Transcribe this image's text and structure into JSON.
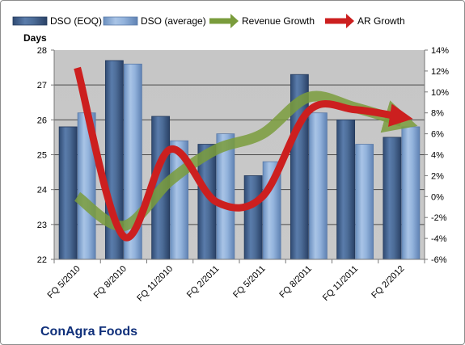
{
  "chart_data": {
    "type": "bar",
    "title": "ConAgra Foods",
    "ylabel": "Days",
    "categories": [
      "FQ 5/2010",
      "FQ 8/2010",
      "FQ 11/2010",
      "FQ 2/2011",
      "FQ 5/2011",
      "FQ 8/2011",
      "FQ 11/2011",
      "FQ 2/2012"
    ],
    "ylim": [
      22,
      28
    ],
    "y_ticks": [
      "22",
      "23",
      "24",
      "25",
      "26",
      "27",
      "28"
    ],
    "y2lim": [
      -6,
      14
    ],
    "y2_ticks": [
      "-6%",
      "-4%",
      "-2%",
      "0%",
      "2%",
      "4%",
      "6%",
      "8%",
      "10%",
      "12%",
      "14%"
    ],
    "grid": true,
    "legend_position": "top",
    "series": [
      {
        "name": "DSO (EOQ)",
        "type": "bar",
        "axis": "left",
        "color": "#4f6e99",
        "values": [
          25.8,
          27.7,
          26.1,
          25.3,
          24.4,
          27.3,
          26.0,
          25.5
        ]
      },
      {
        "name": "DSO (average)",
        "type": "bar",
        "axis": "left",
        "color": "#8fb0d8",
        "values": [
          26.2,
          27.6,
          25.4,
          25.6,
          24.8,
          26.2,
          25.3,
          25.8
        ]
      },
      {
        "name": "Revenue Growth",
        "type": "line",
        "axis": "right",
        "unit": "%",
        "color": "#7a9c3c",
        "values": [
          0.0,
          -2.8,
          1.5,
          4.5,
          6.0,
          9.5,
          8.5,
          7.2
        ]
      },
      {
        "name": "AR Growth",
        "type": "line",
        "axis": "right",
        "unit": "%",
        "color": "#cc1f1f",
        "values": [
          12.3,
          -3.8,
          4.5,
          -0.5,
          0.0,
          8.2,
          8.3,
          7.6
        ]
      }
    ]
  }
}
